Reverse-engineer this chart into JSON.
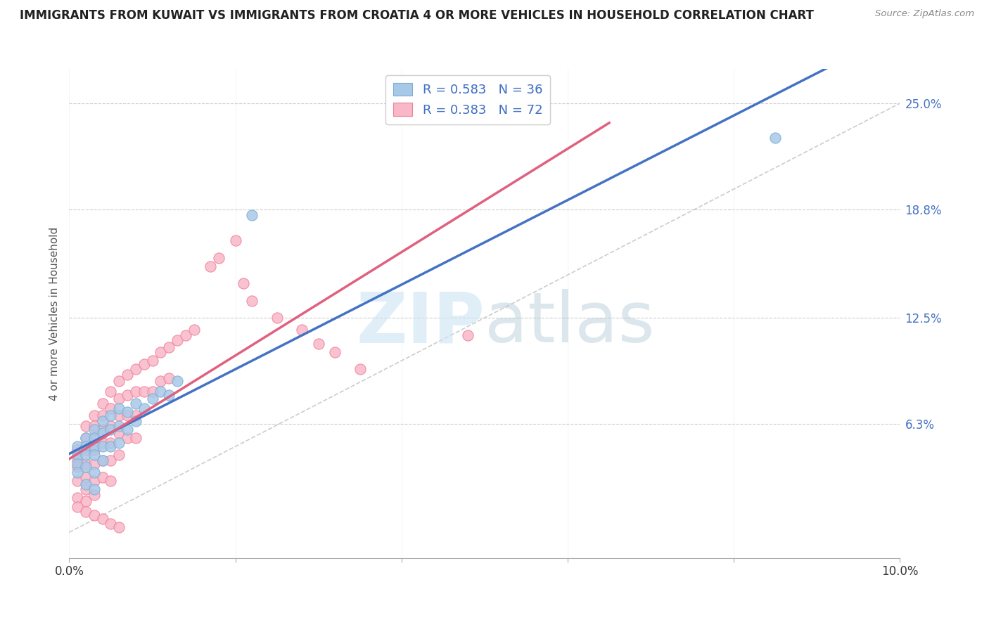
{
  "title": "IMMIGRANTS FROM KUWAIT VS IMMIGRANTS FROM CROATIA 4 OR MORE VEHICLES IN HOUSEHOLD CORRELATION CHART",
  "source": "Source: ZipAtlas.com",
  "ylabel": "4 or more Vehicles in Household",
  "xlim": [
    0.0,
    0.1
  ],
  "ylim": [
    -0.015,
    0.27
  ],
  "yticks": [
    0.063,
    0.125,
    0.188,
    0.25
  ],
  "ytick_labels": [
    "6.3%",
    "12.5%",
    "18.8%",
    "25.0%"
  ],
  "xtick_positions": [
    0.0,
    0.02,
    0.04,
    0.06,
    0.08,
    0.1
  ],
  "xtick_labels": [
    "0.0%",
    "",
    "",
    "",
    "",
    "10.0%"
  ],
  "kuwait_color": "#a8c8e8",
  "kuwait_edge_color": "#7bafd4",
  "croatia_color": "#f8b8c8",
  "croatia_edge_color": "#f08098",
  "line_kuwait_color": "#4472c4",
  "line_croatia_color": "#e06080",
  "kuwait_R": 0.583,
  "kuwait_N": 36,
  "croatia_R": 0.383,
  "croatia_N": 72,
  "watermark_color": "#cce4f4",
  "background_color": "#ffffff",
  "grid_color": "#cccccc",
  "title_fontsize": 12,
  "tick_color": "#4472c4",
  "ref_line_color": "#c0c0c0",
  "kuwait_x": [
    0.001,
    0.001,
    0.001,
    0.001,
    0.002,
    0.002,
    0.002,
    0.002,
    0.003,
    0.003,
    0.003,
    0.003,
    0.003,
    0.004,
    0.004,
    0.004,
    0.004,
    0.005,
    0.005,
    0.005,
    0.006,
    0.006,
    0.006,
    0.007,
    0.007,
    0.008,
    0.008,
    0.009,
    0.01,
    0.011,
    0.012,
    0.013,
    0.022,
    0.085,
    0.002,
    0.003
  ],
  "kuwait_y": [
    0.05,
    0.045,
    0.04,
    0.035,
    0.055,
    0.05,
    0.045,
    0.038,
    0.06,
    0.055,
    0.05,
    0.045,
    0.035,
    0.065,
    0.058,
    0.05,
    0.042,
    0.068,
    0.06,
    0.05,
    0.072,
    0.062,
    0.052,
    0.07,
    0.06,
    0.075,
    0.065,
    0.072,
    0.078,
    0.082,
    0.08,
    0.088,
    0.185,
    0.23,
    0.028,
    0.025
  ],
  "croatia_x": [
    0.001,
    0.001,
    0.001,
    0.001,
    0.001,
    0.002,
    0.002,
    0.002,
    0.002,
    0.002,
    0.002,
    0.002,
    0.003,
    0.003,
    0.003,
    0.003,
    0.003,
    0.003,
    0.003,
    0.004,
    0.004,
    0.004,
    0.004,
    0.004,
    0.004,
    0.005,
    0.005,
    0.005,
    0.005,
    0.005,
    0.005,
    0.006,
    0.006,
    0.006,
    0.006,
    0.006,
    0.007,
    0.007,
    0.007,
    0.007,
    0.008,
    0.008,
    0.008,
    0.008,
    0.009,
    0.009,
    0.01,
    0.01,
    0.011,
    0.011,
    0.012,
    0.012,
    0.013,
    0.014,
    0.015,
    0.017,
    0.018,
    0.02,
    0.021,
    0.022,
    0.025,
    0.028,
    0.03,
    0.032,
    0.035,
    0.048,
    0.001,
    0.002,
    0.003,
    0.004,
    0.005,
    0.006
  ],
  "croatia_y": [
    0.048,
    0.042,
    0.038,
    0.03,
    0.02,
    0.062,
    0.055,
    0.048,
    0.04,
    0.032,
    0.025,
    0.018,
    0.068,
    0.062,
    0.055,
    0.048,
    0.04,
    0.03,
    0.022,
    0.075,
    0.068,
    0.06,
    0.052,
    0.042,
    0.032,
    0.082,
    0.072,
    0.062,
    0.052,
    0.042,
    0.03,
    0.088,
    0.078,
    0.068,
    0.058,
    0.045,
    0.092,
    0.08,
    0.068,
    0.055,
    0.095,
    0.082,
    0.068,
    0.055,
    0.098,
    0.082,
    0.1,
    0.082,
    0.105,
    0.088,
    0.108,
    0.09,
    0.112,
    0.115,
    0.118,
    0.155,
    0.16,
    0.17,
    0.145,
    0.135,
    0.125,
    0.118,
    0.11,
    0.105,
    0.095,
    0.115,
    0.015,
    0.012,
    0.01,
    0.008,
    0.005,
    0.003
  ]
}
